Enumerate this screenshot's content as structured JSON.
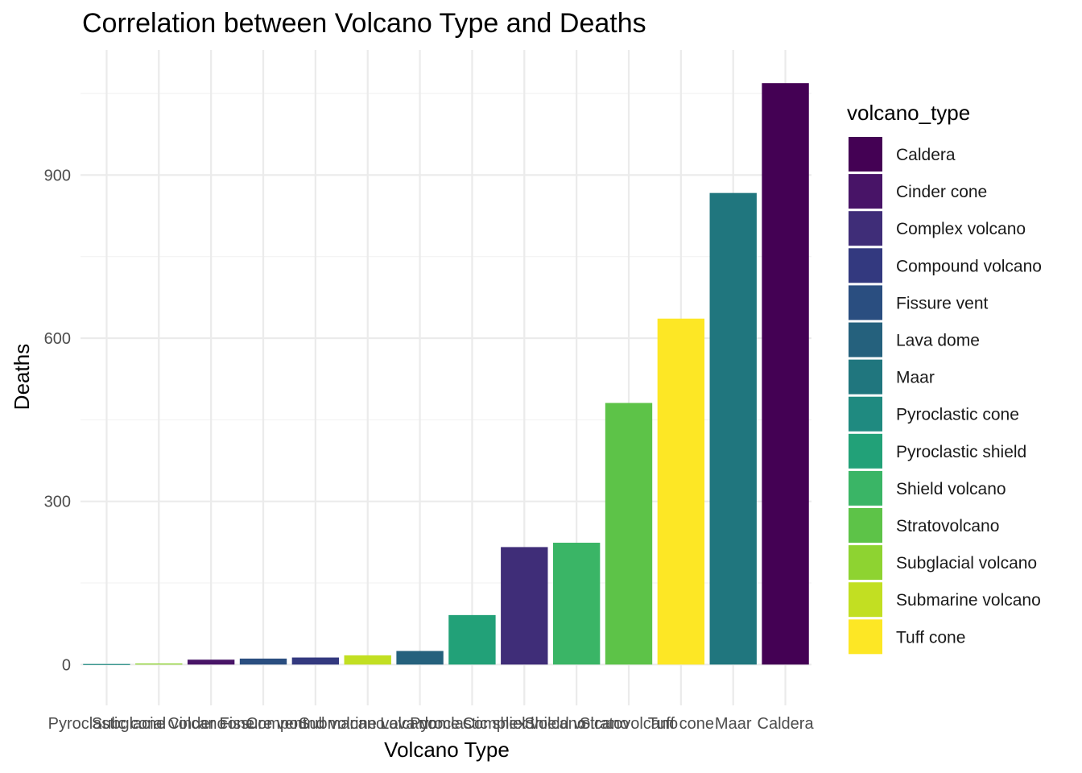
{
  "chart_data": {
    "type": "bar",
    "title": "Correlation between Volcano Type and Deaths",
    "xlabel": "Volcano Type",
    "ylabel": "Deaths",
    "legend_title": "volcano_type",
    "legend_position": "right",
    "grid": true,
    "ylim": [
      -75,
      1130
    ],
    "yticks": [
      0,
      300,
      600,
      900
    ],
    "categories": [
      "Pyroclastic cone",
      "Subglacial volcano",
      "Cinder cone",
      "Fissure vent",
      "Compound volcano",
      "Submarine volcano",
      "Lava dome",
      "Pyroclastic shield",
      "Complex volcano",
      "Shield volcano",
      "Stratovolcano",
      "Tuff cone",
      "Maar",
      "Caldera"
    ],
    "values": [
      1,
      2,
      9,
      11,
      13,
      17,
      25,
      91,
      216,
      224,
      481,
      636,
      867,
      1069
    ],
    "fills": {
      "Caldera": "#440154",
      "Cinder cone": "#481467",
      "Complex volcano": "#3F2D78",
      "Compound volcano": "#33397F",
      "Fissure vent": "#2A4E80",
      "Lava dome": "#25617D",
      "Maar": "#20767E",
      "Pyroclastic cone": "#1F8A80",
      "Pyroclastic shield": "#22A178",
      "Shield volcano": "#3AB566",
      "Stratovolcano": "#5DC348",
      "Subglacial volcano": "#8ED331",
      "Submarine volcano": "#C2DF22",
      "Tuff cone": "#FDE725"
    },
    "legend": [
      "Caldera",
      "Cinder cone",
      "Complex volcano",
      "Compound volcano",
      "Fissure vent",
      "Lava dome",
      "Maar",
      "Pyroclastic cone",
      "Pyroclastic shield",
      "Shield volcano",
      "Stratovolcano",
      "Subglacial volcano",
      "Submarine volcano",
      "Tuff cone"
    ]
  }
}
